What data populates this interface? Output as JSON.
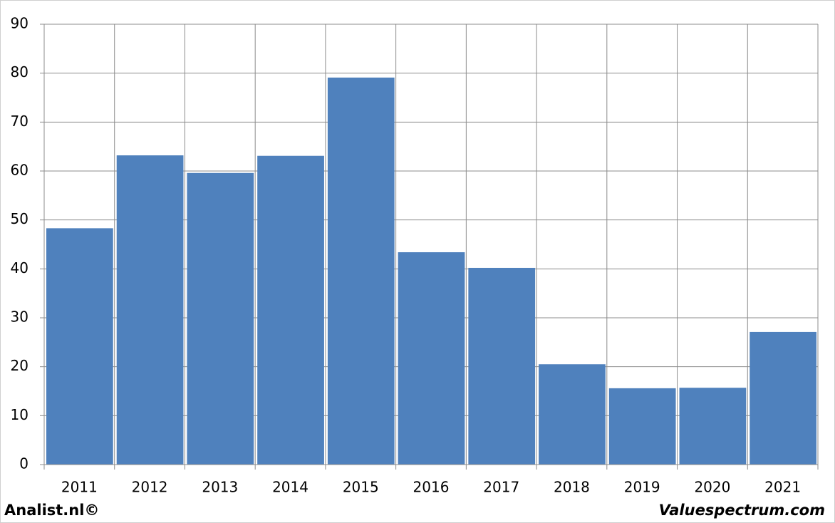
{
  "chart_data": {
    "type": "bar",
    "categories": [
      "2011",
      "2012",
      "2013",
      "2014",
      "2015",
      "2016",
      "2017",
      "2018",
      "2019",
      "2020",
      "2021"
    ],
    "values": [
      48.3,
      63.2,
      59.6,
      63.1,
      79.1,
      43.4,
      40.2,
      20.5,
      15.6,
      15.7,
      27.1
    ],
    "color": "#4f81bd",
    "ylim": [
      0,
      90
    ],
    "yticks": [
      0,
      10,
      20,
      30,
      40,
      50,
      60,
      70,
      80,
      90
    ],
    "grid": true,
    "credit_left": "Analist.nl©",
    "credit_right": "Valuespectrum.com"
  }
}
